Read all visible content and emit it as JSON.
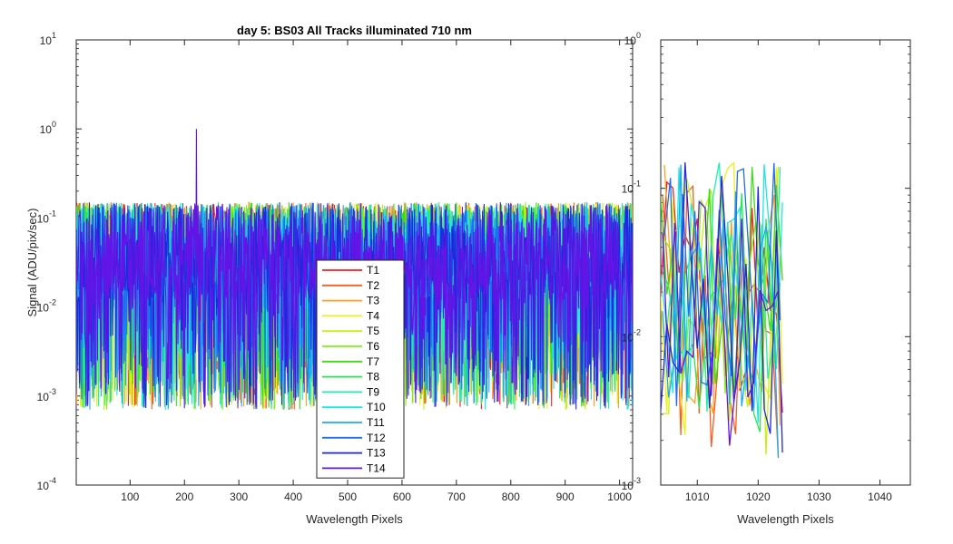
{
  "chart_data": [
    {
      "type": "line",
      "title": "day 5: BS03   All Tracks illuminated   710 nm",
      "xlabel": "Wavelength Pixels",
      "ylabel": "Signal (ADU/pix/sec)",
      "xlim": [
        1,
        1024
      ],
      "ylim": [
        0.0001,
        10
      ],
      "yscale": "log",
      "xticks": [
        100,
        200,
        300,
        400,
        500,
        600,
        700,
        800,
        900,
        1000
      ],
      "yticks": [
        0.0001,
        0.001,
        0.01,
        0.1,
        1,
        10
      ],
      "yticklabels": [
        {
          "base": "10",
          "exp": "-4"
        },
        {
          "base": "10",
          "exp": "-3"
        },
        {
          "base": "10",
          "exp": "-2"
        },
        {
          "base": "10",
          "exp": "-1"
        },
        {
          "base": "10",
          "exp": "0"
        },
        {
          "base": "10",
          "exp": "1"
        }
      ],
      "legend_position": "bottom-center",
      "series": [
        {
          "name": "T1",
          "color": "#ff1a1a"
        },
        {
          "name": "T2",
          "color": "#ff5a1e"
        },
        {
          "name": "T3",
          "color": "#ffa01e"
        },
        {
          "name": "T4",
          "color": "#f0f014"
        },
        {
          "name": "T5",
          "color": "#c8f014"
        },
        {
          "name": "T6",
          "color": "#82f014"
        },
        {
          "name": "T7",
          "color": "#3cdc14"
        },
        {
          "name": "T8",
          "color": "#28e650"
        },
        {
          "name": "T9",
          "color": "#1ef0aa"
        },
        {
          "name": "T10",
          "color": "#1ee6e6"
        },
        {
          "name": "T11",
          "color": "#1eaaf0"
        },
        {
          "name": "T12",
          "color": "#1e6ef0"
        },
        {
          "name": "T13",
          "color": "#1e28dc"
        },
        {
          "name": "T14",
          "color": "#6414e6"
        }
      ],
      "signal_range": [
        0.0007,
        0.2
      ],
      "spike": {
        "x": 222,
        "y": 1.0,
        "series": "T14"
      }
    },
    {
      "type": "line",
      "title": "",
      "xlabel": "Wavelength Pixels",
      "ylabel": "",
      "xlim": [
        1004,
        1045
      ],
      "ylim": [
        0.001,
        1
      ],
      "yscale": "log",
      "xticks": [
        1010,
        1020,
        1030,
        1040
      ],
      "yticks": [
        0.001,
        0.01,
        0.1,
        1
      ],
      "yticklabels": [
        {
          "base": "10",
          "exp": "-3"
        },
        {
          "base": "10",
          "exp": "-2"
        },
        {
          "base": "10",
          "exp": "-1"
        },
        {
          "base": "10",
          "exp": "0"
        }
      ],
      "data_x_range": [
        1004,
        1024
      ],
      "signal_range": [
        0.0015,
        0.16
      ]
    }
  ]
}
